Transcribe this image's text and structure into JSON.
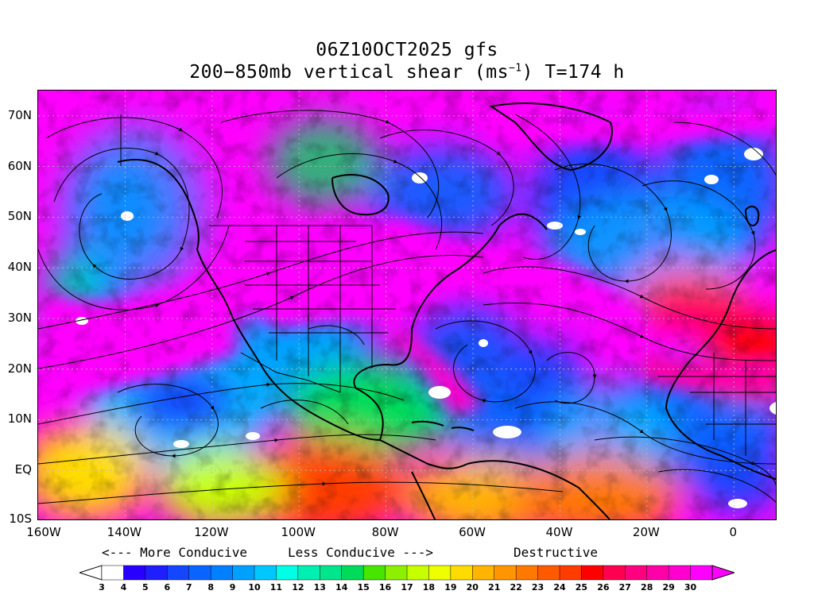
{
  "title_line1": "06Z10OCT2025 gfs",
  "title_line2_main": "200−850mb vertical shear (ms",
  "title_line2_sup": "−1",
  "title_line2_tail": ") T=174 h",
  "lat_labels": [
    "70N",
    "60N",
    "50N",
    "40N",
    "30N",
    "20N",
    "10N",
    "EQ",
    "10S"
  ],
  "lon_labels": [
    "160W",
    "140W",
    "120W",
    "100W",
    "80W",
    "60W",
    "40W",
    "20W",
    "0"
  ],
  "legend": {
    "more": "<--- More Conducive",
    "less": "Less Conducive --->",
    "destructive": "Destructive"
  },
  "colorbar": {
    "levels": [
      "3",
      "4",
      "5",
      "6",
      "7",
      "8",
      "9",
      "10",
      "11",
      "12",
      "13",
      "14",
      "15",
      "16",
      "17",
      "18",
      "19",
      "20",
      "21",
      "22",
      "23",
      "24",
      "25",
      "26",
      "27",
      "28",
      "29",
      "30"
    ],
    "colors": [
      "#ffffff",
      "#2800ff",
      "#1e1eff",
      "#1446ff",
      "#0a64ff",
      "#0080ff",
      "#00a0ff",
      "#00c8ff",
      "#00ffe6",
      "#00f0b4",
      "#00e68c",
      "#00dc5a",
      "#46e600",
      "#8cf000",
      "#c8ff00",
      "#f0ff00",
      "#ffdc00",
      "#ffb400",
      "#ff9600",
      "#ff7800",
      "#ff5a00",
      "#ff3c00",
      "#ff0000",
      "#ff0050",
      "#ff0080",
      "#ff00a8",
      "#ff00d0",
      "#ff00ff"
    ],
    "low_arrow_color": "#ffffff",
    "high_arrow_color": "#ff00ff"
  },
  "map": {
    "lon_range": [
      -160,
      10
    ],
    "lat_range": [
      -10,
      75
    ]
  }
}
